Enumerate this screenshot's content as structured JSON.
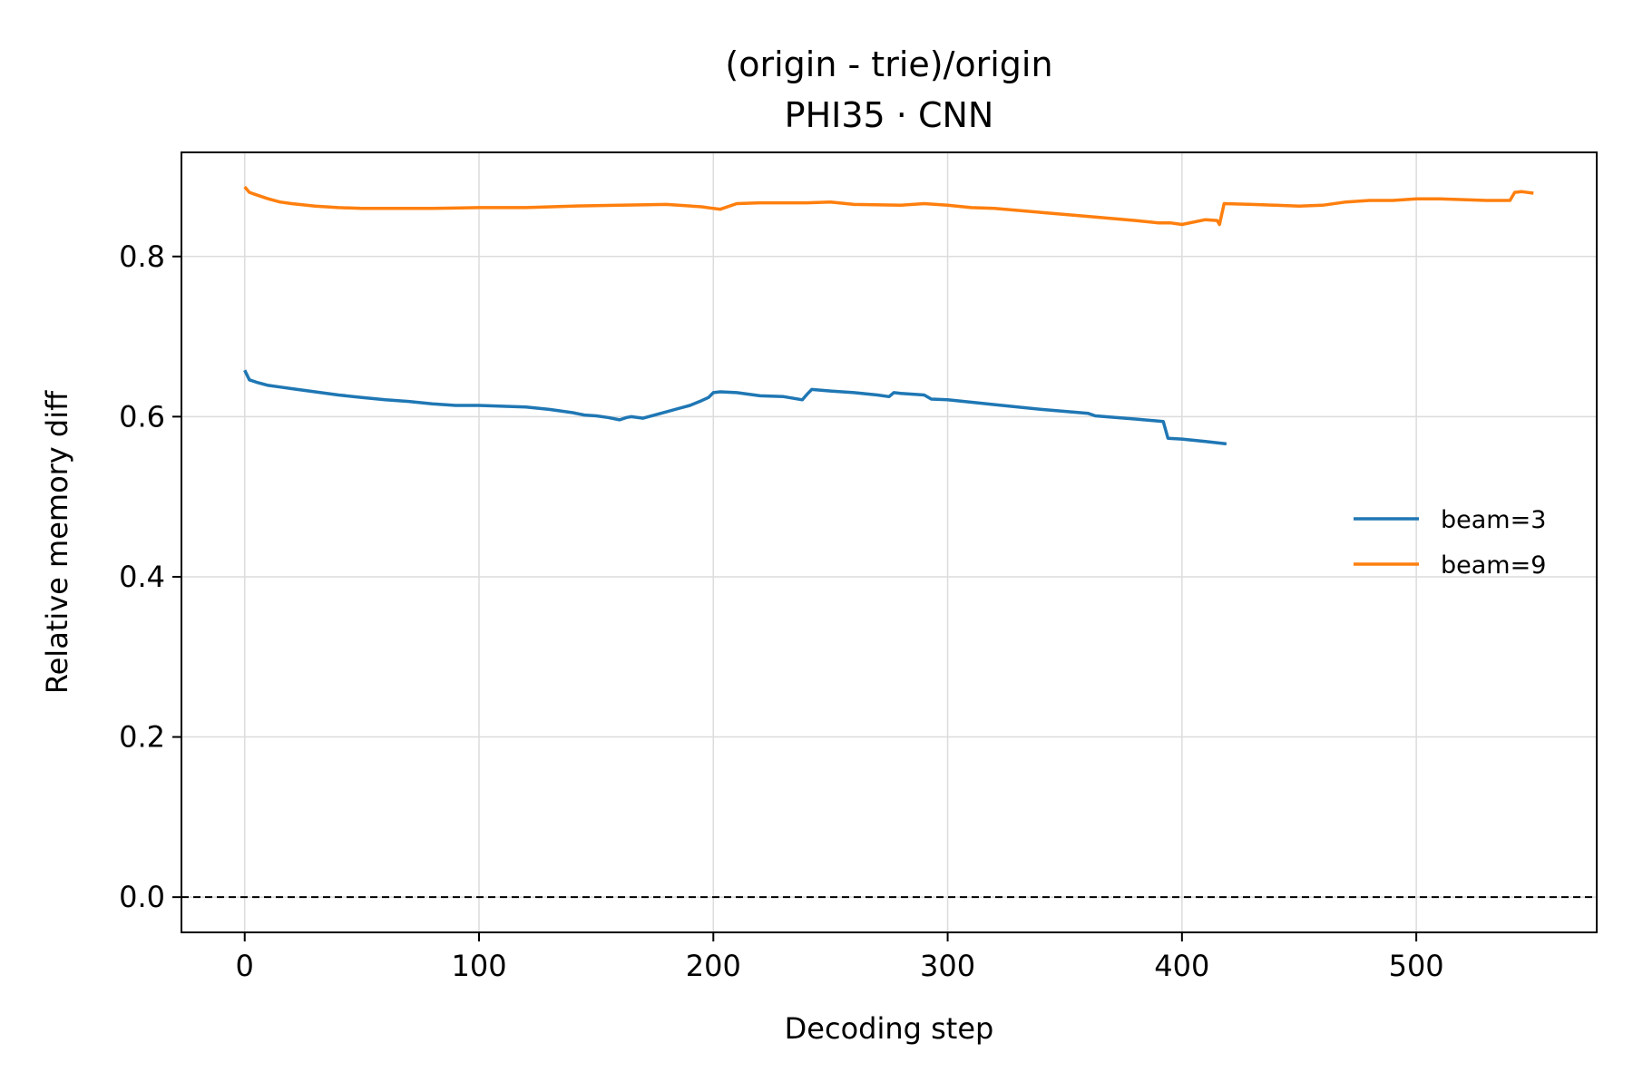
{
  "chart_data": {
    "type": "line",
    "title": "(origin - trie)/origin",
    "subtitle": "PHI35 · CNN",
    "xlabel": "Decoding step",
    "ylabel": "Relative memory diff",
    "xlim": [
      -27,
      577
    ],
    "ylim": [
      -0.044,
      0.93
    ],
    "xticks": [
      0,
      100,
      200,
      300,
      400,
      500
    ],
    "yticks": [
      0.0,
      0.2,
      0.4,
      0.6,
      0.8
    ],
    "xtick_labels": [
      "0",
      "100",
      "200",
      "300",
      "400",
      "500"
    ],
    "ytick_labels": [
      "0.0",
      "0.2",
      "0.4",
      "0.6",
      "0.8"
    ],
    "grid": true,
    "legend_position": "center-right",
    "reference_line": {
      "y": 0.0,
      "style": "dashed",
      "color": "#000000"
    },
    "series": [
      {
        "name": "beam=3",
        "color": "#1f77b4",
        "x": [
          0,
          2,
          5,
          10,
          15,
          20,
          30,
          40,
          50,
          60,
          70,
          80,
          90,
          100,
          110,
          120,
          130,
          140,
          145,
          150,
          155,
          160,
          163,
          165,
          170,
          175,
          180,
          185,
          190,
          195,
          198,
          200,
          203,
          210,
          220,
          230,
          238,
          240,
          242,
          250,
          260,
          270,
          275,
          277,
          280,
          290,
          293,
          300,
          320,
          340,
          360,
          363,
          380,
          392,
          394,
          400,
          410,
          419
        ],
        "y": [
          0.658,
          0.646,
          0.643,
          0.639,
          0.637,
          0.635,
          0.631,
          0.627,
          0.624,
          0.621,
          0.619,
          0.616,
          0.614,
          0.614,
          0.613,
          0.612,
          0.609,
          0.605,
          0.602,
          0.601,
          0.599,
          0.596,
          0.599,
          0.6,
          0.598,
          0.602,
          0.606,
          0.61,
          0.614,
          0.62,
          0.624,
          0.63,
          0.631,
          0.63,
          0.626,
          0.625,
          0.621,
          0.628,
          0.634,
          0.632,
          0.63,
          0.627,
          0.625,
          0.63,
          0.629,
          0.627,
          0.622,
          0.621,
          0.615,
          0.609,
          0.604,
          0.601,
          0.597,
          0.594,
          0.573,
          0.572,
          0.569,
          0.566
        ]
      },
      {
        "name": "beam=9",
        "color": "#ff7f0e",
        "x": [
          0,
          2,
          5,
          10,
          15,
          20,
          30,
          40,
          50,
          60,
          80,
          100,
          120,
          140,
          160,
          180,
          195,
          200,
          203,
          210,
          220,
          240,
          250,
          260,
          280,
          290,
          300,
          310,
          320,
          340,
          360,
          380,
          390,
          395,
          400,
          410,
          415,
          416,
          418,
          430,
          440,
          450,
          460,
          470,
          480,
          490,
          500,
          510,
          520,
          530,
          540,
          542,
          545,
          550
        ],
        "y": [
          0.887,
          0.88,
          0.877,
          0.872,
          0.868,
          0.866,
          0.863,
          0.861,
          0.86,
          0.86,
          0.86,
          0.861,
          0.861,
          0.863,
          0.864,
          0.865,
          0.862,
          0.86,
          0.859,
          0.866,
          0.867,
          0.867,
          0.868,
          0.865,
          0.864,
          0.866,
          0.864,
          0.861,
          0.86,
          0.855,
          0.85,
          0.845,
          0.842,
          0.842,
          0.84,
          0.846,
          0.845,
          0.84,
          0.866,
          0.865,
          0.864,
          0.863,
          0.864,
          0.868,
          0.87,
          0.87,
          0.872,
          0.872,
          0.871,
          0.87,
          0.87,
          0.88,
          0.881,
          0.879
        ]
      }
    ]
  }
}
